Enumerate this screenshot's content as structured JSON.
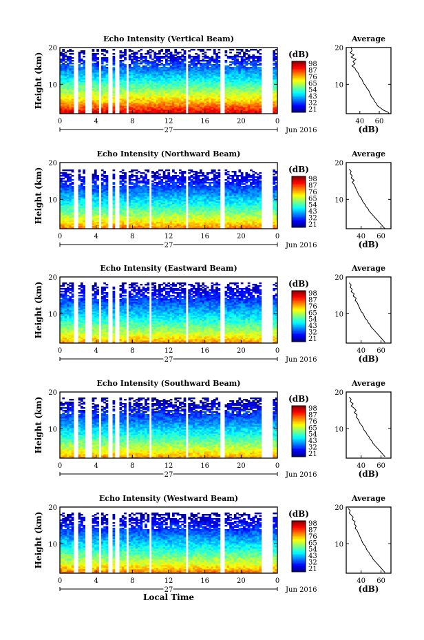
{
  "chart_data": [
    {
      "type": "heatmap",
      "title": "Echo Intensity (Vertical Beam)",
      "ylabel": "Height (km)",
      "x_ticks": [
        "0",
        "4",
        "8",
        "12",
        "16",
        "20",
        "0"
      ],
      "y_ticks": [
        "20",
        "10"
      ],
      "xlim": [
        0,
        24
      ],
      "ylim": [
        2,
        20
      ],
      "day_label": "27",
      "date_label": "Jun 2016",
      "colorbar": {
        "unit": "(dB)",
        "labels": [
          "98",
          "87",
          "76",
          "65",
          "54",
          "43",
          "32",
          "21"
        ]
      },
      "gap_hours": [
        [
          1.6,
          2.1
        ],
        [
          2.9,
          3.5
        ],
        [
          4.2,
          4.6
        ],
        [
          5.4,
          5.8
        ],
        [
          6.1,
          6.5
        ],
        [
          7.3,
          7.7
        ],
        [
          13.9,
          14.2
        ],
        [
          17.8,
          18.2
        ],
        [
          22.2,
          23.5
        ]
      ],
      "top_height_km": 19.6,
      "surface_max_db": 95,
      "top_min_db": 22,
      "average_profile": {
        "title": "Average",
        "xlabel": "(dB)",
        "x_ticks": [
          "40",
          "60"
        ],
        "y_ticks": [
          "20",
          "10"
        ],
        "xlim": [
          26,
          72
        ],
        "ylim": [
          2,
          20
        ],
        "points": [
          [
            20.0,
            31
          ],
          [
            19.2,
            32
          ],
          [
            18.6,
            30
          ],
          [
            18.0,
            34
          ],
          [
            17.4,
            31
          ],
          [
            16.8,
            36
          ],
          [
            16.2,
            33
          ],
          [
            15.6,
            35
          ],
          [
            15.0,
            32
          ],
          [
            14.4,
            35
          ],
          [
            13.8,
            36
          ],
          [
            13.2,
            38
          ],
          [
            12.6,
            39
          ],
          [
            12.0,
            40
          ],
          [
            11.4,
            42
          ],
          [
            10.8,
            43
          ],
          [
            10.2,
            44
          ],
          [
            9.6,
            46
          ],
          [
            9.0,
            47
          ],
          [
            8.4,
            49
          ],
          [
            7.8,
            50
          ],
          [
            7.2,
            51
          ],
          [
            6.6,
            52
          ],
          [
            6.0,
            54
          ],
          [
            5.4,
            55
          ],
          [
            4.8,
            57
          ],
          [
            4.2,
            58
          ],
          [
            3.6,
            61
          ],
          [
            3.0,
            64
          ],
          [
            2.4,
            69
          ],
          [
            2.0,
            70
          ]
        ]
      }
    },
    {
      "type": "heatmap",
      "title": "Echo Intensity (Northward Beam)",
      "ylabel": "Height (km)",
      "x_ticks": [
        "0",
        "4",
        "8",
        "12",
        "16",
        "20",
        "0"
      ],
      "y_ticks": [
        "20",
        "10"
      ],
      "xlim": [
        0,
        24
      ],
      "ylim": [
        2,
        20
      ],
      "day_label": "27",
      "date_label": "Jun 2016",
      "colorbar": {
        "unit": "(dB)",
        "labels": [
          "98",
          "87",
          "76",
          "65",
          "54",
          "43",
          "32",
          "21"
        ]
      },
      "gap_hours": [
        [
          1.6,
          2.1
        ],
        [
          2.9,
          3.5
        ],
        [
          4.2,
          4.6
        ],
        [
          5.4,
          5.8
        ],
        [
          6.1,
          6.5
        ],
        [
          7.3,
          7.7
        ],
        [
          9.9,
          10.2
        ],
        [
          13.9,
          14.2
        ],
        [
          17.8,
          18.2
        ],
        [
          22.2,
          23.5
        ]
      ],
      "top_height_km": 18.2,
      "surface_max_db": 82,
      "top_min_db": 22,
      "average_profile": {
        "title": "Average",
        "xlabel": "(dB)",
        "x_ticks": [
          "40",
          "60"
        ],
        "y_ticks": [
          "20",
          "10"
        ],
        "xlim": [
          25,
          70
        ],
        "ylim": [
          2,
          20
        ],
        "points": [
          [
            18.2,
            28
          ],
          [
            17.6,
            30
          ],
          [
            17.0,
            29
          ],
          [
            16.4,
            31
          ],
          [
            15.8,
            30
          ],
          [
            15.2,
            33
          ],
          [
            14.6,
            31
          ],
          [
            14.0,
            33
          ],
          [
            13.4,
            34
          ],
          [
            12.8,
            35
          ],
          [
            12.2,
            36
          ],
          [
            11.6,
            37
          ],
          [
            11.0,
            38
          ],
          [
            10.4,
            40
          ],
          [
            9.8,
            41
          ],
          [
            9.2,
            42
          ],
          [
            8.6,
            44
          ],
          [
            8.0,
            45
          ],
          [
            7.4,
            47
          ],
          [
            6.8,
            48
          ],
          [
            6.2,
            50
          ],
          [
            5.6,
            52
          ],
          [
            5.0,
            54
          ],
          [
            4.4,
            56
          ],
          [
            3.8,
            58
          ],
          [
            3.2,
            60
          ],
          [
            2.6,
            62
          ],
          [
            2.0,
            64
          ]
        ]
      }
    },
    {
      "type": "heatmap",
      "title": "Echo Intensity (Eastward Beam)",
      "ylabel": "Height (km)",
      "x_ticks": [
        "0",
        "4",
        "8",
        "12",
        "16",
        "20",
        "0"
      ],
      "y_ticks": [
        "20",
        "10"
      ],
      "xlim": [
        0,
        24
      ],
      "ylim": [
        2,
        20
      ],
      "day_label": "27",
      "date_label": "Jun 2016",
      "colorbar": {
        "unit": "(dB)",
        "labels": [
          "98",
          "87",
          "76",
          "65",
          "54",
          "43",
          "32",
          "21"
        ]
      },
      "gap_hours": [
        [
          1.6,
          2.1
        ],
        [
          2.9,
          3.5
        ],
        [
          4.2,
          4.6
        ],
        [
          5.4,
          5.8
        ],
        [
          6.1,
          6.5
        ],
        [
          7.3,
          7.7
        ],
        [
          9.9,
          10.2
        ],
        [
          13.9,
          14.2
        ],
        [
          17.8,
          18.2
        ],
        [
          22.2,
          23.5
        ]
      ],
      "top_height_km": 18.6,
      "surface_max_db": 80,
      "top_min_db": 22,
      "average_profile": {
        "title": "Average",
        "xlabel": "(dB)",
        "x_ticks": [
          "40",
          "60"
        ],
        "y_ticks": [
          "20",
          "10"
        ],
        "xlim": [
          25,
          70
        ],
        "ylim": [
          2,
          20
        ],
        "points": [
          [
            18.4,
            28
          ],
          [
            17.8,
            30
          ],
          [
            17.2,
            29
          ],
          [
            16.6,
            31
          ],
          [
            16.0,
            30
          ],
          [
            15.4,
            33
          ],
          [
            14.8,
            32
          ],
          [
            14.2,
            35
          ],
          [
            13.6,
            34
          ],
          [
            13.0,
            36
          ],
          [
            12.4,
            37
          ],
          [
            11.8,
            38
          ],
          [
            11.2,
            39
          ],
          [
            10.6,
            40
          ],
          [
            10.0,
            42
          ],
          [
            9.4,
            43
          ],
          [
            8.8,
            44
          ],
          [
            8.2,
            46
          ],
          [
            7.6,
            47
          ],
          [
            7.0,
            49
          ],
          [
            6.4,
            50
          ],
          [
            5.8,
            52
          ],
          [
            5.2,
            54
          ],
          [
            4.6,
            56
          ],
          [
            4.0,
            58
          ],
          [
            3.4,
            60
          ],
          [
            2.8,
            62
          ],
          [
            2.2,
            64
          ]
        ]
      }
    },
    {
      "type": "heatmap",
      "title": "Echo Intensity (Southward Beam)",
      "ylabel": "Height (km)",
      "x_ticks": [
        "0",
        "4",
        "8",
        "12",
        "16",
        "20",
        "0"
      ],
      "y_ticks": [
        "20",
        "10"
      ],
      "xlim": [
        0,
        24
      ],
      "ylim": [
        2,
        20
      ],
      "day_label": "27",
      "date_label": "Jun 2016",
      "colorbar": {
        "unit": "(dB)",
        "labels": [
          "98",
          "87",
          "76",
          "65",
          "54",
          "43",
          "32",
          "21"
        ]
      },
      "gap_hours": [
        [
          1.6,
          2.1
        ],
        [
          2.9,
          3.5
        ],
        [
          4.2,
          4.6
        ],
        [
          5.4,
          5.8
        ],
        [
          6.1,
          6.5
        ],
        [
          7.3,
          7.7
        ],
        [
          9.9,
          10.2
        ],
        [
          13.9,
          14.2
        ],
        [
          17.8,
          18.2
        ],
        [
          22.2,
          23.5
        ]
      ],
      "top_height_km": 18.6,
      "surface_max_db": 80,
      "top_min_db": 22,
      "average_profile": {
        "title": "Average",
        "xlabel": "(dB)",
        "x_ticks": [
          "40",
          "60"
        ],
        "y_ticks": [
          "20",
          "10"
        ],
        "xlim": [
          25,
          70
        ],
        "ylim": [
          2,
          20
        ],
        "points": [
          [
            18.6,
            28
          ],
          [
            18.0,
            30
          ],
          [
            17.4,
            29
          ],
          [
            16.8,
            32
          ],
          [
            16.2,
            30
          ],
          [
            15.6,
            33
          ],
          [
            15.0,
            35
          ],
          [
            14.4,
            33
          ],
          [
            13.8,
            36
          ],
          [
            13.2,
            35
          ],
          [
            12.6,
            37
          ],
          [
            12.0,
            38
          ],
          [
            11.4,
            39
          ],
          [
            10.8,
            41
          ],
          [
            10.2,
            42
          ],
          [
            9.6,
            43
          ],
          [
            9.0,
            45
          ],
          [
            8.4,
            46
          ],
          [
            7.8,
            48
          ],
          [
            7.2,
            49
          ],
          [
            6.6,
            51
          ],
          [
            6.0,
            52
          ],
          [
            5.4,
            54
          ],
          [
            4.8,
            56
          ],
          [
            4.2,
            58
          ],
          [
            3.6,
            60
          ],
          [
            3.0,
            62
          ],
          [
            2.4,
            64
          ]
        ]
      }
    },
    {
      "type": "heatmap",
      "title": "Echo Intensity (Westward Beam)",
      "ylabel": "Height (km)",
      "xlabel": "Local Time",
      "x_ticks": [
        "0",
        "4",
        "8",
        "12",
        "16",
        "20",
        "0"
      ],
      "y_ticks": [
        "20",
        "10"
      ],
      "xlim": [
        0,
        24
      ],
      "ylim": [
        2,
        20
      ],
      "day_label": "27",
      "date_label": "Jun 2016",
      "colorbar": {
        "unit": "(dB)",
        "labels": [
          "98",
          "87",
          "76",
          "65",
          "54",
          "43",
          "32",
          "21"
        ]
      },
      "gap_hours": [
        [
          1.6,
          2.1
        ],
        [
          2.9,
          3.5
        ],
        [
          4.2,
          4.6
        ],
        [
          5.4,
          5.8
        ],
        [
          6.1,
          6.5
        ],
        [
          7.3,
          7.7
        ],
        [
          9.9,
          10.2
        ],
        [
          13.9,
          14.2
        ],
        [
          17.8,
          18.2
        ],
        [
          22.2,
          23.5
        ]
      ],
      "top_height_km": 18.6,
      "surface_max_db": 82,
      "top_min_db": 22,
      "average_profile": {
        "title": "Average",
        "xlabel": "(dB)",
        "x_ticks": [
          "40",
          "60"
        ],
        "y_ticks": [
          "20",
          "10"
        ],
        "xlim": [
          25,
          70
        ],
        "ylim": [
          2,
          20
        ],
        "points": [
          [
            19.6,
            27
          ],
          [
            19.0,
            29
          ],
          [
            18.4,
            28
          ],
          [
            17.8,
            30
          ],
          [
            17.2,
            32
          ],
          [
            16.6,
            31
          ],
          [
            16.0,
            34
          ],
          [
            15.4,
            33
          ],
          [
            14.8,
            35
          ],
          [
            14.2,
            34
          ],
          [
            13.6,
            36
          ],
          [
            13.0,
            37
          ],
          [
            12.4,
            38
          ],
          [
            11.8,
            39
          ],
          [
            11.2,
            40
          ],
          [
            10.6,
            41
          ],
          [
            10.0,
            42
          ],
          [
            9.4,
            44
          ],
          [
            8.8,
            45
          ],
          [
            8.2,
            46
          ],
          [
            7.6,
            48
          ],
          [
            7.0,
            49
          ],
          [
            6.4,
            51
          ],
          [
            5.8,
            52
          ],
          [
            5.2,
            54
          ],
          [
            4.6,
            56
          ],
          [
            4.0,
            58
          ],
          [
            3.4,
            60
          ],
          [
            2.8,
            62
          ],
          [
            2.2,
            64
          ]
        ]
      }
    }
  ]
}
